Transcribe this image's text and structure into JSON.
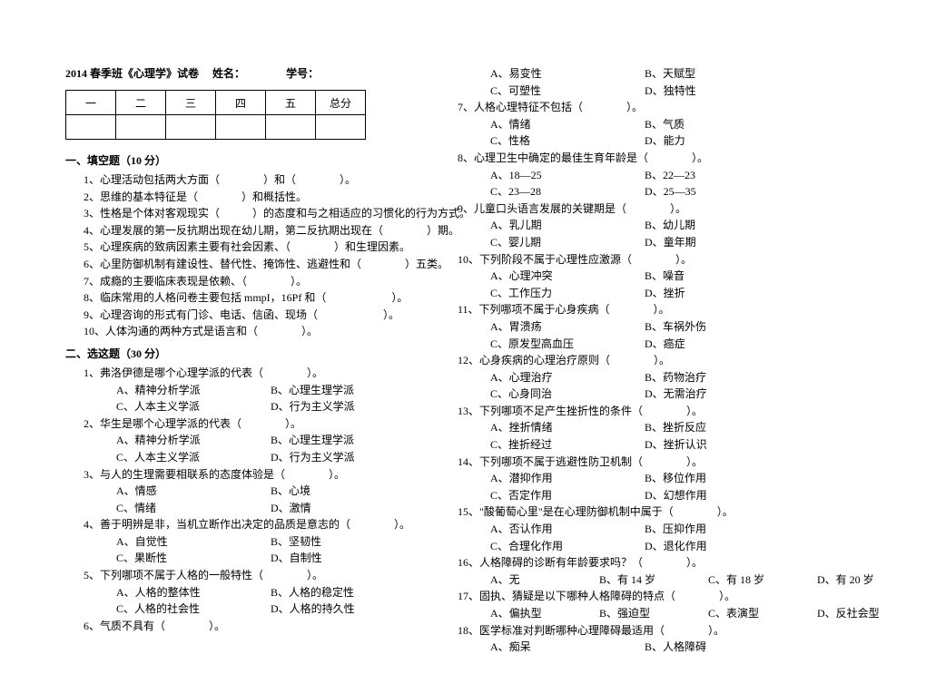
{
  "header": {
    "title": "2014 春季班《心理学》试卷",
    "name_label": "姓名：",
    "id_label": "学号："
  },
  "score_table": [
    "一",
    "二",
    "三",
    "四",
    "五",
    "总分"
  ],
  "section1": {
    "title": "一、填空题（10 分）",
    "items": [
      "1、心理活动包括两大方面（　　　　）和（　　　　）。",
      "2、思维的基本特征是（　　　　）和概括性。",
      "3、性格是个体对客观现实（　　　）的态度和与之相适应的习惯化的行为方式。",
      "4、心理发展的第一反抗期出现在幼儿期，第二反抗期出现在（　　　　）期。",
      "5、心理疾病的致病因素主要有社会因素、（　　　　）和生理因素。",
      "6、心里防御机制有建设性、替代性、掩饰性、逃避性和（　　　　）五类。",
      "7、成瘾的主要临床表现是依赖、（　　　　）。",
      "8、临床常用的人格问卷主要包括 mmpI，16Pf 和（　　　　　　）。",
      "9、心理咨询的形式有门诊、电话、信函、现场（　　　　　　）。",
      "10、人体沟通的两种方式是语言和（　　　　）。"
    ]
  },
  "section2": {
    "title": "二、选这题（30 分）",
    "questions": [
      {
        "stem": "1、弗洛伊德是哪个心理学派的代表（　　　　）。",
        "opts": [
          "A、精神分析学派",
          "B、心理生理学派",
          "C、人本主义学派",
          "D、行为主义学派"
        ]
      },
      {
        "stem": "2、华生是哪个心理学派的代表（　　　　）。",
        "opts": [
          "A、精神分析学派",
          "B、心理生理学派",
          "C、人本主义学派",
          "D、行为主义学派"
        ]
      },
      {
        "stem": "3、与人的生理需要相联系的态度体验是（　　　　）。",
        "opts": [
          "A、情感",
          "B、心境",
          "C、情绪",
          "D、激情"
        ]
      },
      {
        "stem": "4、善于明辨是非，当机立断作出决定的品质是意志的（　　　　）。",
        "opts": [
          "A、自觉性",
          "B、坚韧性",
          "C、果断性",
          "D、自制性"
        ]
      },
      {
        "stem": "5、下列哪项不属于人格的一般特性（　　　　）。",
        "opts": [
          "A、人格的整体性",
          "B、人格的稳定性",
          "C、人格的社会性",
          "D、人格的持久性"
        ]
      },
      {
        "stem": "6、气质不具有（　　　　）。",
        "opts": [
          "A、易变性",
          "B、天赋型",
          "C、可塑性",
          "D、独特性"
        ]
      },
      {
        "stem": "7、人格心理特征不包括（　　　　）。",
        "opts": [
          "A、情绪",
          "B、气质",
          "C、性格",
          "D、能力"
        ]
      },
      {
        "stem": "8、心理卫生中确定的最佳生育年龄是（　　　　）。",
        "opts": [
          "A、18—25",
          "B、22—23",
          "C、23—28",
          "D、25—35"
        ]
      },
      {
        "stem": "9、儿童口头语言发展的关键期是（　　　　）。",
        "opts": [
          "A、乳儿期",
          "B、幼儿期",
          "C、婴儿期",
          "D、童年期"
        ]
      },
      {
        "stem": "10、下列阶段不属于心理性应激源（　　　　）。",
        "opts": [
          "A、心理冲突",
          "B、噪音",
          "C、工作压力",
          "D、挫折"
        ]
      },
      {
        "stem": "11、下列哪项不属于心身疾病（　　　　）。",
        "opts": [
          "A、胃溃疡",
          "B、车祸外伤",
          "C、原发型高血压",
          "D、癌症"
        ]
      },
      {
        "stem": "12、心身疾病的心理治疗原则（　　　　）。",
        "opts": [
          "A、心理治疗",
          "B、药物治疗",
          "C、心身同治",
          "D、无需治疗"
        ]
      },
      {
        "stem": "13、下列哪项不足产生挫折性的条件（　　　　）。",
        "opts": [
          "A、挫折情绪",
          "B、挫折反应",
          "C、挫折经过",
          "D、挫折认识"
        ]
      },
      {
        "stem": "14、下列哪项不属于逃避性防卫机制（　　　　）。",
        "opts": [
          "A、潜抑作用",
          "B、移位作用",
          "C、否定作用",
          "D、幻想作用"
        ]
      },
      {
        "stem": "15、\"酸葡萄心里\"是在心理防御机制中属于（　　　　）。",
        "opts": [
          "A、否认作用",
          "B、压抑作用",
          "C、合理化作用",
          "D、退化作用"
        ]
      },
      {
        "stem": "16、人格障碍的诊断有年龄要求吗？（　　　　）。",
        "opts": [
          "A、无",
          "B、有 14 岁",
          "C、有 18 岁",
          "D、有 20 岁"
        ]
      },
      {
        "stem": "17、固执、猜疑是以下哪种人格障碍的特点（　　　　）。",
        "opts": [
          "A、偏执型",
          "B、强迫型",
          "C、表演型",
          "D、反社会型"
        ]
      },
      {
        "stem": "18、医学标准对判断哪种心理障碍最适用（　　　　）。",
        "opts": [
          "A、痴呆",
          "B、人格障碍"
        ]
      }
    ]
  }
}
